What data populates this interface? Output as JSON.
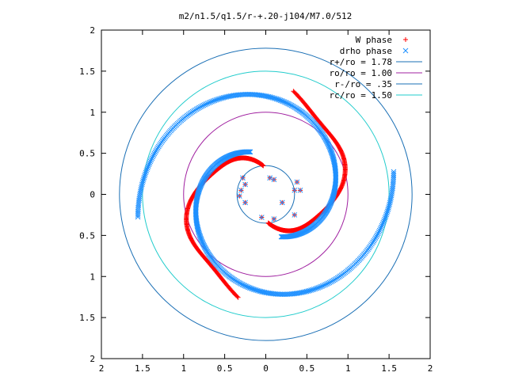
{
  "chart_data": {
    "type": "scatter",
    "title": "m2/n1.5/q1.5/r-+.20-j104/M7.0/512",
    "xlabel": "",
    "ylabel": "",
    "xlim": [
      -2,
      2
    ],
    "ylim": [
      -2,
      2
    ],
    "x_tick_labels": [
      "2",
      "1.5",
      "1",
      "0.5",
      "0",
      "0.5",
      "1",
      "1.5",
      "2"
    ],
    "y_tick_labels": [
      "2",
      "1.5",
      "1",
      "0.5",
      "0",
      "0.5",
      "1",
      "1.5",
      "2"
    ],
    "x_tick_values": [
      -2,
      -1.5,
      -1,
      -0.5,
      0,
      0.5,
      1,
      1.5,
      2
    ],
    "y_tick_values": [
      2,
      1.5,
      1,
      0.5,
      0,
      -0.5,
      -1,
      -1.5,
      -2
    ],
    "grid": false,
    "legend_position": "top-right",
    "series": [
      {
        "name": "W phase",
        "kind": "points",
        "marker": "plus",
        "color": "#ff0000",
        "arms": [
          {
            "r0": 0.35,
            "r1": 1.3,
            "theta0_deg": 95,
            "sweep_deg": 160,
            "ripple": 0.35
          },
          {
            "r0": 0.35,
            "r1": 1.3,
            "theta0_deg": 275,
            "sweep_deg": 160,
            "ripple": 0.35
          }
        ],
        "inner_points": [
          [
            -0.28,
            0.2
          ],
          [
            -0.25,
            0.12
          ],
          [
            -0.3,
            0.05
          ],
          [
            0.05,
            0.2
          ],
          [
            0.1,
            0.18
          ],
          [
            -0.25,
            -0.1
          ],
          [
            0.38,
            0.15
          ],
          [
            0.42,
            0.05
          ],
          [
            0.35,
            -0.25
          ],
          [
            0.1,
            -0.3
          ],
          [
            -0.05,
            -0.28
          ],
          [
            -0.32,
            -0.02
          ],
          [
            0.35,
            0.05
          ],
          [
            0.2,
            -0.1
          ]
        ]
      },
      {
        "name": "drho phase",
        "kind": "points",
        "marker": "cross",
        "color": "#1e90ff",
        "arms": [
          {
            "r0": 0.55,
            "r1": 1.58,
            "theta0_deg": 110,
            "sweep_deg": 260,
            "ripple": 0.08
          },
          {
            "r0": 0.55,
            "r1": 1.58,
            "theta0_deg": 290,
            "sweep_deg": 260,
            "ripple": 0.08
          }
        ],
        "inner_points": [
          [
            -0.28,
            0.2
          ],
          [
            -0.25,
            0.12
          ],
          [
            -0.3,
            0.05
          ],
          [
            0.05,
            0.2
          ],
          [
            0.1,
            0.18
          ],
          [
            -0.25,
            -0.1
          ],
          [
            0.38,
            0.15
          ],
          [
            0.42,
            0.05
          ],
          [
            0.35,
            -0.25
          ],
          [
            0.1,
            -0.3
          ],
          [
            -0.05,
            -0.28
          ],
          [
            -0.32,
            -0.02
          ],
          [
            0.35,
            0.05
          ],
          [
            0.2,
            -0.1
          ]
        ]
      },
      {
        "name": "r+/ro = 1.78",
        "kind": "circle",
        "radius": 1.78,
        "color": "#1a6fb5"
      },
      {
        "name": "ro/ro = 1.00",
        "kind": "circle",
        "radius": 1.0,
        "color": "#a020a0"
      },
      {
        "name": "r-/ro = .35",
        "kind": "circle",
        "radius": 0.35,
        "color": "#1a6fb5"
      },
      {
        "name": "rc/ro = 1.50",
        "kind": "circle",
        "radius": 1.5,
        "color": "#22cccc"
      }
    ]
  }
}
